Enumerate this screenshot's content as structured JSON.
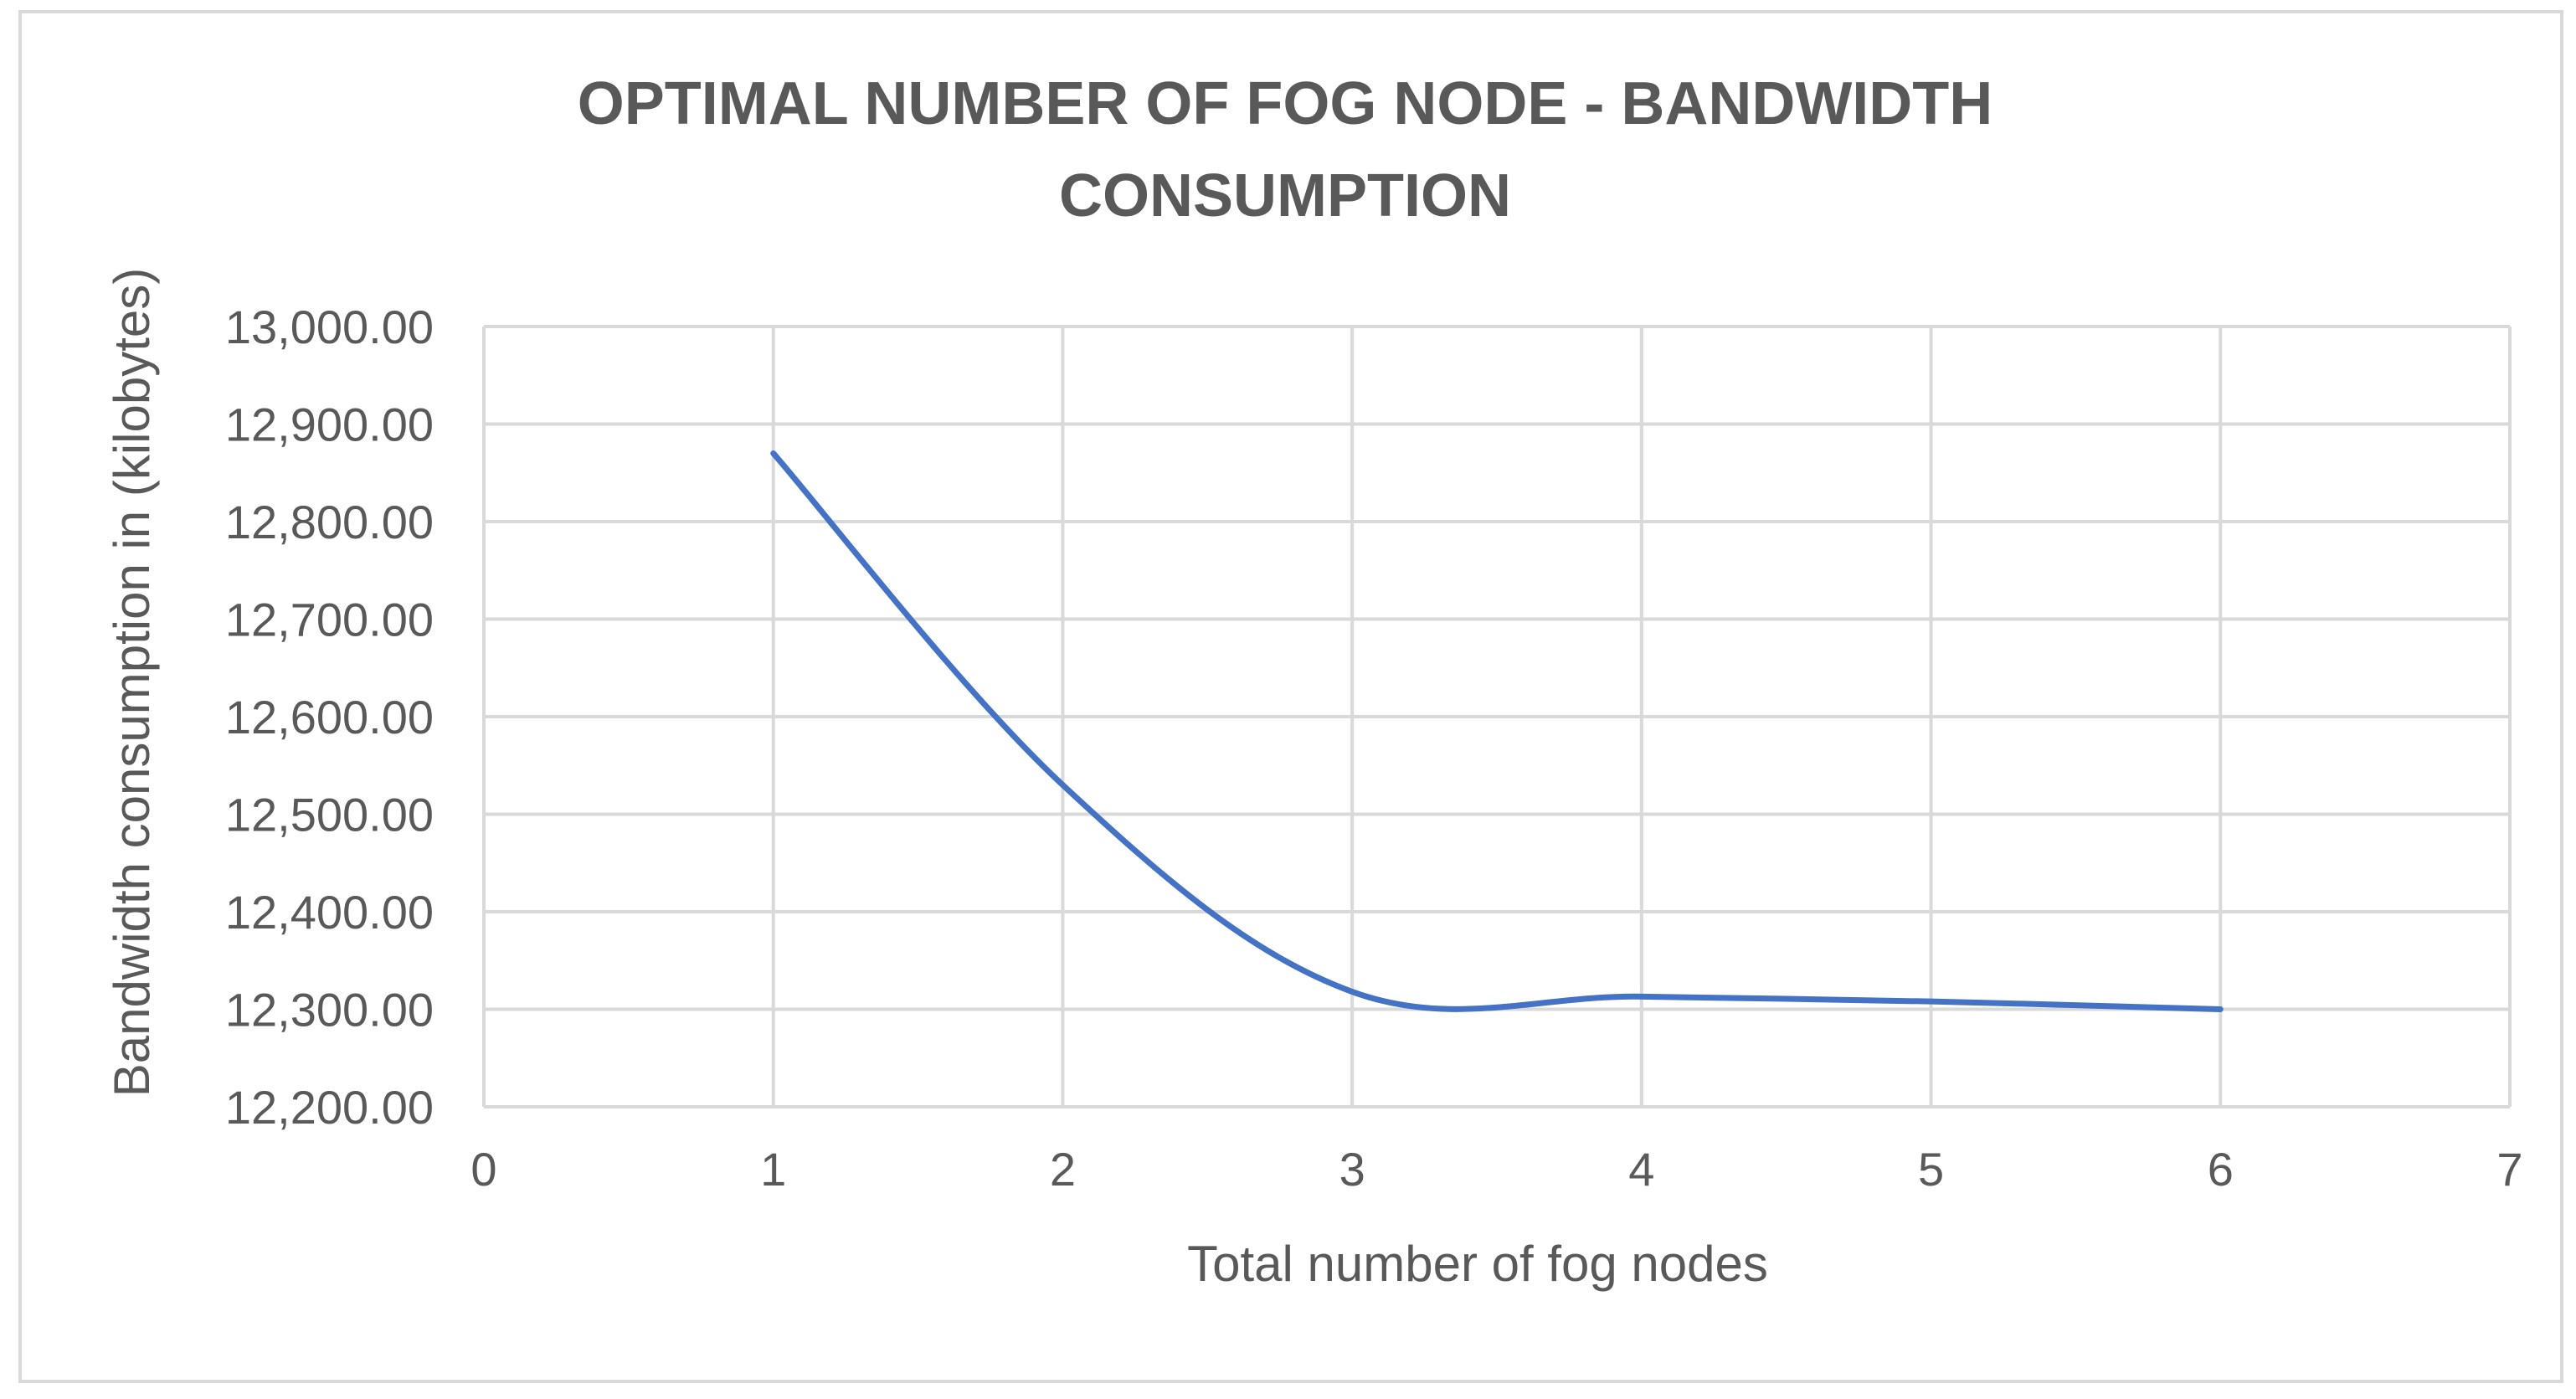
{
  "chart_data": {
    "type": "line",
    "title_lines": [
      "OPTIMAL NUMBER OF FOG NODE - BANDWIDTH",
      "CONSUMPTION"
    ],
    "xlabel": "Total number of fog nodes",
    "ylabel": "Bandwidth consumption in (kilobytes)",
    "xlim": [
      0,
      7
    ],
    "ylim": [
      12200,
      13000
    ],
    "x_ticks": [
      0,
      1,
      2,
      3,
      4,
      5,
      6,
      7
    ],
    "x_tick_labels": [
      "0",
      "1",
      "2",
      "3",
      "4",
      "5",
      "6",
      "7"
    ],
    "y_ticks": [
      12200,
      12300,
      12400,
      12500,
      12600,
      12700,
      12800,
      12900,
      13000
    ],
    "y_tick_labels": [
      "12,200.00",
      "12,300.00",
      "12,400.00",
      "12,500.00",
      "12,600.00",
      "12,700.00",
      "12,800.00",
      "12,900.00",
      "13,000.00"
    ],
    "grid": true,
    "smooth": true,
    "series": [
      {
        "name": "Bandwidth consumption",
        "color": "#4472c4",
        "x": [
          1,
          2,
          3,
          4,
          5,
          6
        ],
        "y": [
          12870,
          12530,
          12318,
          12313,
          12308,
          12300
        ]
      }
    ]
  },
  "colors": {
    "grid": "#d9d9d9",
    "text": "#595959",
    "border": "#d9d9d9"
  }
}
